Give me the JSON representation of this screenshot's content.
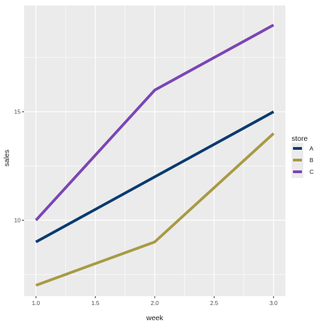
{
  "chart_data": {
    "type": "line",
    "xlabel": "week",
    "ylabel": "sales",
    "x": [
      1.0,
      2.0,
      3.0
    ],
    "xlim": [
      0.9,
      3.1
    ],
    "ylim": [
      6.5,
      19.9
    ],
    "x_ticks": [
      1.0,
      1.5,
      2.0,
      2.5,
      3.0
    ],
    "x_tick_labels": [
      "1.0",
      "1.5",
      "2.0",
      "2.5",
      "3.0"
    ],
    "y_ticks": [
      10,
      15
    ],
    "y_tick_labels": [
      "10",
      "15"
    ],
    "grid": true,
    "legend": {
      "title": "store",
      "placement": "right"
    },
    "series": [
      {
        "name": "A",
        "color": "#0a3a70",
        "values": [
          9,
          12,
          15
        ]
      },
      {
        "name": "B",
        "color": "#a89a45",
        "values": [
          7,
          9,
          14
        ]
      },
      {
        "name": "C",
        "color": "#7b45b5",
        "values": [
          10,
          16,
          19
        ]
      }
    ],
    "panel_color": "#ebebeb",
    "grid_color": "#ffffff"
  }
}
